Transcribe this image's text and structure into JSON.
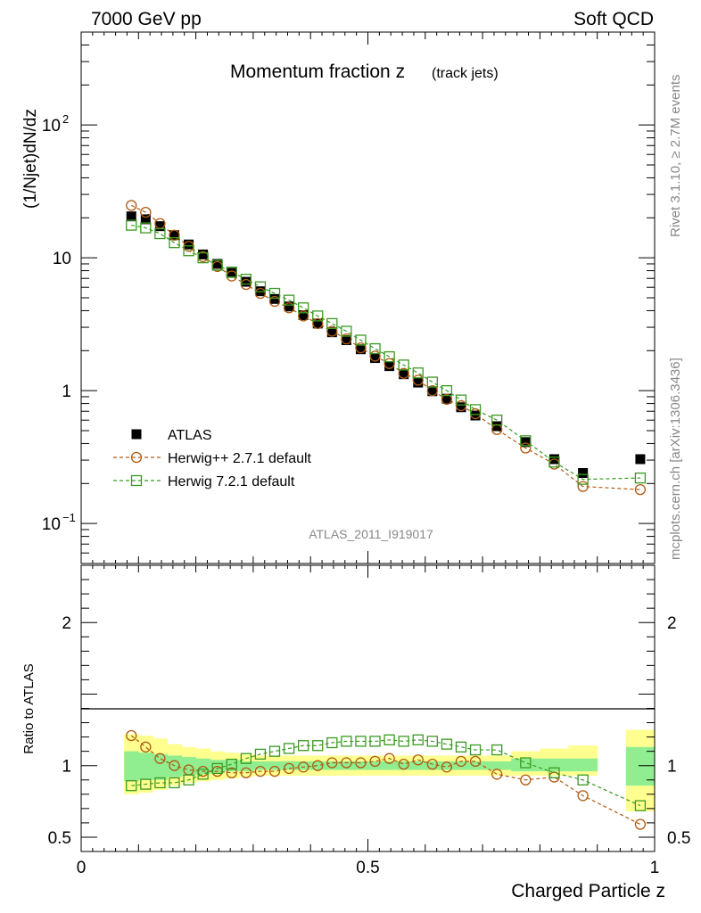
{
  "header": {
    "left": "7000 GeV pp",
    "right": "Soft QCD"
  },
  "side_labels": {
    "rivet": "Rivet 3.1.10, ≥ 2.7M events",
    "mcplots": "mcplots.cern.ch [arXiv:1306.3436]"
  },
  "chart_data": {
    "type": "scatter",
    "title_main": "Momentum fraction z",
    "title_sub": "(track jets)",
    "analysis_label": "ATLAS_2011_I919017",
    "ylabel": "(1/Njet)dN/dz",
    "ratio_ylabel": "Ratio to ATLAS",
    "xlabel": "Charged Particle z",
    "xlim": [
      0,
      1
    ],
    "ylim": [
      0.05,
      500
    ],
    "yscale": "log",
    "ratio_ylim": [
      0.4,
      2.4
    ],
    "x_ticks": [
      "0",
      "0.5",
      "1"
    ],
    "y_ticks": [
      {
        "base": "10",
        "exp": "−1",
        "value": 0.1
      },
      {
        "base": "1",
        "exp": "",
        "value": 1
      },
      {
        "base": "10",
        "exp": "",
        "value": 10
      },
      {
        "base": "10",
        "exp": "2",
        "value": 100
      }
    ],
    "ratio_ticks": [
      {
        "label": "0.5",
        "value": 0.5
      },
      {
        "label": "1",
        "value": 1
      },
      {
        "label": "2",
        "value": 2
      }
    ],
    "legend_position": "lower-left",
    "x": [
      0.0875,
      0.1125,
      0.1375,
      0.1625,
      0.1875,
      0.2125,
      0.2375,
      0.2625,
      0.2875,
      0.3125,
      0.3375,
      0.3625,
      0.3875,
      0.4125,
      0.4375,
      0.4625,
      0.4875,
      0.5125,
      0.5375,
      0.5625,
      0.5875,
      0.6125,
      0.6375,
      0.6625,
      0.6875,
      0.725,
      0.775,
      0.825,
      0.875,
      0.975
    ],
    "bin_edges": [
      0.075,
      0.1,
      0.125,
      0.15,
      0.175,
      0.2,
      0.225,
      0.25,
      0.275,
      0.3,
      0.325,
      0.35,
      0.375,
      0.4,
      0.425,
      0.45,
      0.475,
      0.5,
      0.525,
      0.55,
      0.575,
      0.6,
      0.625,
      0.65,
      0.675,
      0.7,
      0.75,
      0.8,
      0.85,
      0.9,
      0.95,
      1.0
    ],
    "series": [
      {
        "name": "ATLAS",
        "color": "#000000",
        "marker": "filled-square",
        "values": [
          20.5,
          19.5,
          17.3,
          14.8,
          12.6,
          10.6,
          9.0,
          7.7,
          6.6,
          5.6,
          4.9,
          4.3,
          3.7,
          3.2,
          2.75,
          2.4,
          2.05,
          1.76,
          1.53,
          1.33,
          1.15,
          0.99,
          0.87,
          0.75,
          0.65,
          0.54,
          0.41,
          0.305,
          0.24,
          0.305
        ]
      },
      {
        "name": "Herwig++ 2.7.1 default",
        "color": "#b05a10",
        "marker": "open-circle",
        "values": [
          24.8,
          22.0,
          18.1,
          14.8,
          12.2,
          10.2,
          8.6,
          7.3,
          6.3,
          5.4,
          4.7,
          4.2,
          3.65,
          3.2,
          2.8,
          2.45,
          2.1,
          1.82,
          1.6,
          1.35,
          1.2,
          1.0,
          0.86,
          0.77,
          0.67,
          0.51,
          0.37,
          0.28,
          0.19,
          0.18
        ]
      },
      {
        "name": "Herwig 7.2.1 default",
        "color": "#3a9a20",
        "marker": "open-square",
        "values": [
          17.6,
          16.8,
          15.2,
          13.0,
          11.3,
          10.0,
          8.8,
          7.8,
          6.9,
          6.05,
          5.4,
          4.8,
          4.2,
          3.65,
          3.2,
          2.8,
          2.4,
          2.07,
          1.8,
          1.56,
          1.36,
          1.16,
          1.0,
          0.85,
          0.72,
          0.6,
          0.42,
          0.29,
          0.215,
          0.22
        ]
      }
    ],
    "ratio_series": [
      {
        "name": "Herwig++ 2.7.1 default",
        "values": [
          1.21,
          1.13,
          1.05,
          1.0,
          0.97,
          0.96,
          0.96,
          0.95,
          0.95,
          0.96,
          0.96,
          0.98,
          0.99,
          1.0,
          1.02,
          1.02,
          1.02,
          1.03,
          1.05,
          1.01,
          1.04,
          1.01,
          0.99,
          1.03,
          1.03,
          0.94,
          0.9,
          0.92,
          0.79,
          0.59
        ]
      },
      {
        "name": "Herwig 7.2.1 default",
        "values": [
          0.86,
          0.87,
          0.88,
          0.88,
          0.9,
          0.94,
          0.98,
          1.01,
          1.05,
          1.08,
          1.1,
          1.12,
          1.14,
          1.14,
          1.16,
          1.17,
          1.17,
          1.17,
          1.18,
          1.17,
          1.18,
          1.17,
          1.15,
          1.13,
          1.11,
          1.11,
          1.02,
          0.95,
          0.9,
          0.72
        ]
      }
    ],
    "bands": {
      "yellow": {
        "color": "#ffff90",
        "lo": [
          0.8,
          0.81,
          0.83,
          0.86,
          0.88,
          0.89,
          0.9,
          0.91,
          0.92,
          0.93,
          0.93,
          0.93,
          0.93,
          0.93,
          0.93,
          0.93,
          0.93,
          0.93,
          0.93,
          0.93,
          0.93,
          0.93,
          0.93,
          0.93,
          0.93,
          0.93,
          0.93,
          0.93,
          0.93,
          null,
          0.68
        ],
        "hi": [
          1.22,
          1.21,
          1.19,
          1.15,
          1.13,
          1.12,
          1.1,
          1.09,
          1.08,
          1.07,
          1.07,
          1.07,
          1.07,
          1.07,
          1.07,
          1.07,
          1.07,
          1.07,
          1.07,
          1.07,
          1.07,
          1.07,
          1.07,
          1.07,
          1.07,
          1.07,
          1.1,
          1.12,
          1.14,
          null,
          1.25
        ]
      },
      "green": {
        "color": "#90ee90",
        "lo": [
          0.89,
          0.9,
          0.9,
          0.92,
          0.93,
          0.94,
          0.95,
          0.96,
          0.96,
          0.97,
          0.97,
          0.97,
          0.97,
          0.97,
          0.97,
          0.97,
          0.97,
          0.97,
          0.97,
          0.97,
          0.97,
          0.97,
          0.97,
          0.97,
          0.97,
          0.97,
          0.96,
          0.96,
          0.96,
          null,
          0.86
        ],
        "hi": [
          1.1,
          1.09,
          1.08,
          1.07,
          1.06,
          1.05,
          1.04,
          1.04,
          1.03,
          1.03,
          1.03,
          1.03,
          1.03,
          1.03,
          1.03,
          1.03,
          1.03,
          1.03,
          1.03,
          1.03,
          1.03,
          1.03,
          1.03,
          1.03,
          1.03,
          1.03,
          1.05,
          1.05,
          1.05,
          null,
          1.13
        ]
      }
    }
  }
}
